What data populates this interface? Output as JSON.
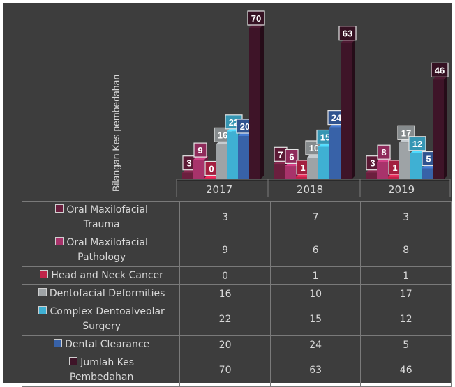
{
  "chart_data": {
    "type": "bar",
    "ylabel": "Bilangan Kes pembedahan",
    "categories": [
      "2017",
      "2018",
      "2019"
    ],
    "series": [
      {
        "name": "Oral Maxilofacial Trauma",
        "color": "#6b1f3e",
        "values": [
          3,
          7,
          3
        ]
      },
      {
        "name": "Oral Maxilofacial Pathology",
        "color": "#a8336b",
        "values": [
          9,
          6,
          8
        ]
      },
      {
        "name": "Head and Neck Cancer",
        "color": "#c0244a",
        "values": [
          0,
          1,
          1
        ]
      },
      {
        "name": "Dentofacial Deformities",
        "color": "#9ea3a6",
        "values": [
          16,
          10,
          17
        ]
      },
      {
        "name": "Complex Dentoalveolar Surgery",
        "color": "#3fb0d3",
        "values": [
          22,
          15,
          12
        ]
      },
      {
        "name": "Dental Clearance",
        "color": "#3862a8",
        "values": [
          20,
          24,
          5
        ]
      },
      {
        "name": "Jumlah Kes Pembedahan",
        "color": "#3e1428",
        "values": [
          70,
          63,
          46
        ]
      }
    ],
    "ylim": [
      0,
      70
    ]
  },
  "table": {
    "rows": [
      {
        "label_lines": [
          "Oral Maxilofacial",
          "Trauma"
        ],
        "values": [
          "3",
          "7",
          "3"
        ]
      },
      {
        "label_lines": [
          "Oral Maxilofacial",
          "Pathology"
        ],
        "values": [
          "9",
          "6",
          "8"
        ]
      },
      {
        "label_lines": [
          "Head and Neck Cancer"
        ],
        "values": [
          "0",
          "1",
          "1"
        ]
      },
      {
        "label_lines": [
          "Dentofacial Deformities"
        ],
        "values": [
          "16",
          "10",
          "17"
        ]
      },
      {
        "label_lines": [
          "Complex Dentoalveolar",
          "Surgery"
        ],
        "values": [
          "22",
          "15",
          "12"
        ]
      },
      {
        "label_lines": [
          "Dental Clearance"
        ],
        "values": [
          "20",
          "24",
          "5"
        ]
      },
      {
        "label_lines": [
          "Jumlah Kes",
          "Pembedahan"
        ],
        "values": [
          "70",
          "63",
          "46"
        ]
      }
    ]
  }
}
